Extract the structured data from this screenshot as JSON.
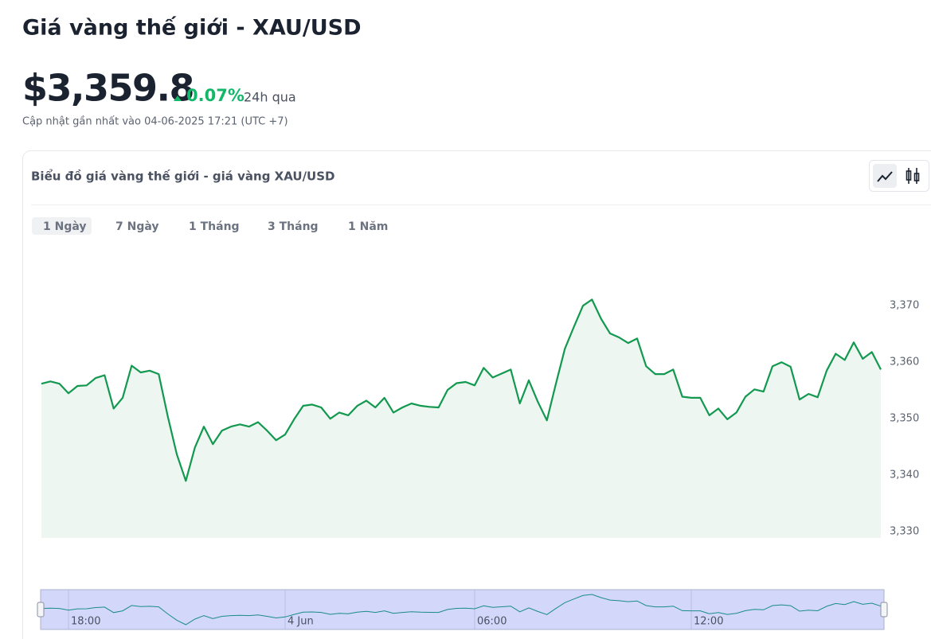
{
  "header": {
    "title": "Giá vàng thế giới - XAU/USD",
    "price": "$3,359.8",
    "change": "0.07%",
    "change_period": "24h qua",
    "updated": "Cập nhật gần nhất vào 04-06-2025 17:21 (UTC +7)"
  },
  "tabs": [
    "1 Ngày",
    "7 Ngày",
    "1 Tháng",
    "3 Tháng",
    "1 Năm"
  ],
  "chart_data": {
    "type": "line",
    "title": "Biểu đồ giá vàng thế giới - giá vàng XAU/USD",
    "values": [
      3356.2,
      3356.6,
      3356.2,
      3354.5,
      3355.8,
      3355.9,
      3357.2,
      3357.7,
      3351.8,
      3353.7,
      3359.4,
      3358.2,
      3358.5,
      3357.9,
      3350.4,
      3343.7,
      3339.0,
      3344.9,
      3348.6,
      3345.5,
      3347.9,
      3348.6,
      3349.0,
      3348.6,
      3349.4,
      3347.9,
      3346.2,
      3347.2,
      3349.9,
      3352.3,
      3352.5,
      3352.0,
      3350.0,
      3351.1,
      3350.6,
      3352.3,
      3353.2,
      3352.0,
      3353.7,
      3351.1,
      3352.0,
      3352.7,
      3352.3,
      3352.1,
      3352.0,
      3355.1,
      3356.3,
      3356.5,
      3355.9,
      3359.0,
      3357.3,
      3358.0,
      3358.7,
      3352.7,
      3356.8,
      3353.0,
      3349.7,
      3356.2,
      3362.4,
      3366.3,
      3370.0,
      3371.1,
      3367.7,
      3365.1,
      3364.4,
      3363.4,
      3364.2,
      3359.3,
      3357.9,
      3357.9,
      3358.7,
      3353.9,
      3353.7,
      3353.7,
      3350.6,
      3351.8,
      3349.9,
      3351.1,
      3353.9,
      3355.2,
      3354.8,
      3359.3,
      3360.0,
      3359.2,
      3353.4,
      3354.4,
      3353.8,
      3358.5,
      3361.5,
      3360.4,
      3363.5,
      3360.6,
      3361.8,
      3358.7
    ],
    "color": "#12994f",
    "ylim": [
      3328.9,
      3382
    ],
    "yticks": [
      {
        "value": 3330,
        "label": "3,330"
      },
      {
        "value": 3340,
        "label": "3,340"
      },
      {
        "value": 3350,
        "label": "3,350"
      },
      {
        "value": 3360,
        "label": "3,360"
      },
      {
        "value": 3370,
        "label": "3,370"
      }
    ],
    "navigator_xticks": [
      {
        "value": 3,
        "label": "18:00"
      },
      {
        "value": 27,
        "label": "4 Jun"
      },
      {
        "value": 48,
        "label": "06:00"
      },
      {
        "value": 72,
        "label": "12:00"
      }
    ]
  }
}
